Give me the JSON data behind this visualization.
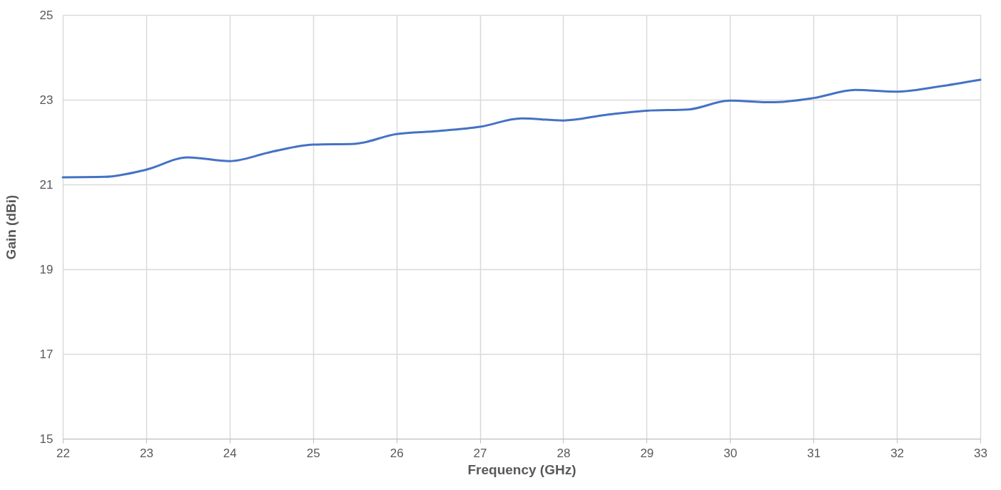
{
  "chart_data": {
    "type": "line",
    "xlabel": "Frequency (GHz)",
    "ylabel": "Gain (dBi)",
    "x": [
      22,
      22.5,
      23,
      23.5,
      24,
      24.5,
      25,
      25.5,
      26,
      26.5,
      27,
      27.5,
      28,
      28.5,
      29,
      29.5,
      30,
      30.5,
      31,
      31.5,
      32,
      32.5,
      33
    ],
    "series": [
      {
        "color": "#4472c4",
        "values": [
          21.17,
          21.18,
          21.35,
          21.64,
          21.55,
          21.77,
          21.94,
          21.96,
          22.19,
          22.26,
          22.36,
          22.56,
          22.51,
          22.64,
          22.74,
          22.77,
          22.98,
          22.94,
          23.04,
          23.23,
          23.19,
          23.31,
          23.47
        ]
      }
    ],
    "xlim": [
      22,
      33
    ],
    "xticks": [
      22,
      23,
      24,
      25,
      26,
      27,
      28,
      29,
      30,
      31,
      32,
      33
    ],
    "ylim": [
      15,
      25
    ],
    "yticks": [
      15,
      17,
      19,
      21,
      23,
      25
    ],
    "grid": true,
    "marker": "none",
    "line_style": "solid"
  }
}
